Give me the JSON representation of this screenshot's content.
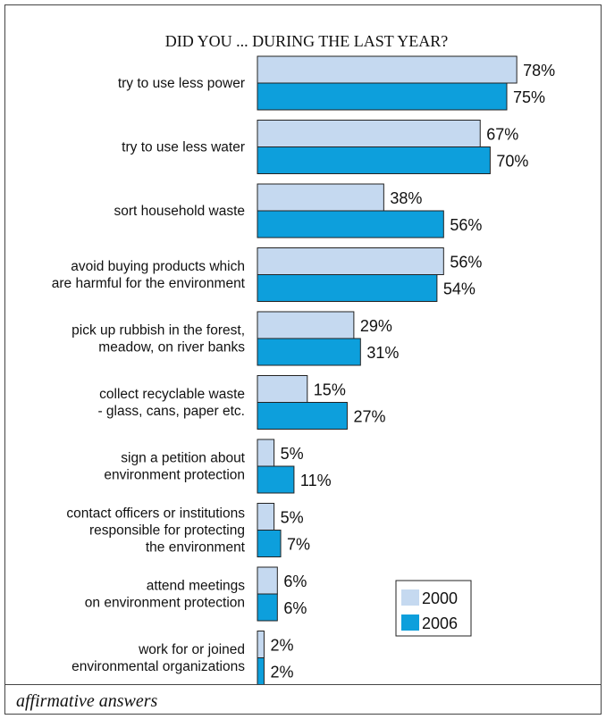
{
  "chart_data": {
    "type": "bar",
    "orientation": "horizontal",
    "title": "DID YOU ... DURING THE LAST YEAR?",
    "categories": [
      [
        "try to use less power"
      ],
      [
        "try to use less water"
      ],
      [
        "sort household waste"
      ],
      [
        "avoid buying products which",
        "are harmful for the environment"
      ],
      [
        "pick up rubbish in the forest,",
        "meadow, on river banks"
      ],
      [
        "collect recyclable waste",
        "- glass, cans, paper etc."
      ],
      [
        "sign a petition about",
        "environment protection"
      ],
      [
        "contact officers or institutions",
        "responsible for protecting",
        "the environment"
      ],
      [
        "attend meetings",
        "on environment protection"
      ],
      [
        "work for or joined",
        "environmental organizations"
      ]
    ],
    "series": [
      {
        "name": "2000",
        "color": "#c5d9f0",
        "values": [
          78,
          67,
          38,
          56,
          29,
          15,
          5,
          5,
          6,
          2
        ]
      },
      {
        "name": "2006",
        "color": "#0d9fdc",
        "values": [
          75,
          70,
          56,
          54,
          31,
          27,
          11,
          7,
          6,
          2
        ]
      }
    ],
    "value_suffix": "%",
    "xlim": [
      0,
      100
    ],
    "grid": false,
    "legend_position": "bottom-right",
    "footnote": "affirmative answers"
  }
}
